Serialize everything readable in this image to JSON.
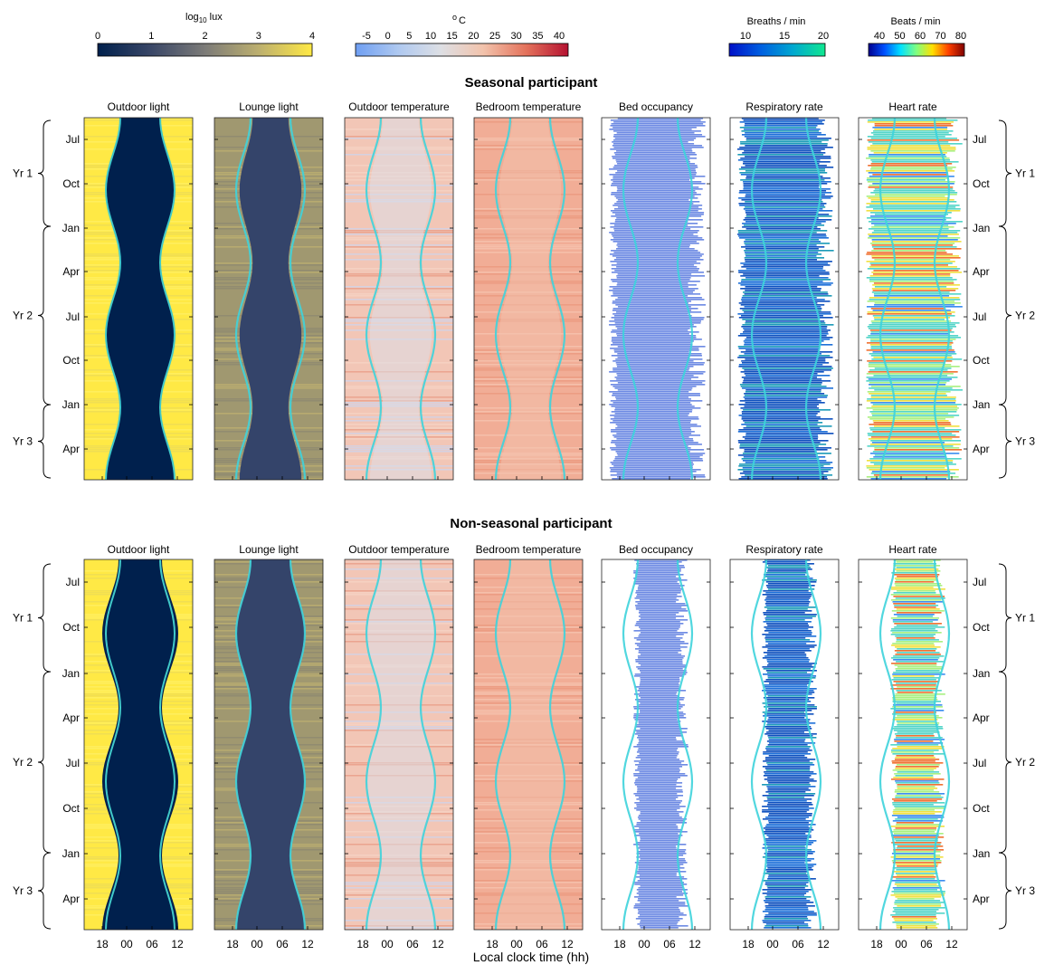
{
  "colorbars": [
    {
      "label": "log",
      "label_sub": "10",
      "label_tail": " lux",
      "ticks": [
        "0",
        "1",
        "2",
        "3",
        "4"
      ],
      "colors": [
        "#00204d",
        "#3a4767",
        "#7c7b78",
        "#bcaf6f",
        "#ffe945"
      ]
    },
    {
      "label": "o",
      "label_tail": "C",
      "ticks": [
        "-5",
        "0",
        "5",
        "10",
        "15",
        "20",
        "25",
        "30",
        "35",
        "40"
      ],
      "colors": [
        "#6f9ff2",
        "#aec8f0",
        "#dddfe4",
        "#f2c3ac",
        "#e4735c",
        "#b51231"
      ]
    },
    {
      "label": "Breaths / min",
      "ticks": [
        "10",
        "15",
        "20"
      ],
      "colors": [
        "#0010c8",
        "#0060e0",
        "#00a8d0",
        "#10e890"
      ]
    },
    {
      "label": "Beats / min",
      "ticks": [
        "40",
        "50",
        "60",
        "70",
        "80"
      ],
      "colors": [
        "#00008f",
        "#0050ff",
        "#00e0ff",
        "#80ff80",
        "#ffe000",
        "#ff4000",
        "#800000"
      ]
    }
  ],
  "sections": [
    {
      "title": "Seasonal participant",
      "years": [
        "Yr 1",
        "Yr 2",
        "Yr 3"
      ],
      "months": [
        "Jul",
        "Oct",
        "Jan",
        "Apr",
        "Jul",
        "Oct",
        "Jan",
        "Apr"
      ]
    },
    {
      "title": "Non-seasonal participant",
      "years": [
        "Yr 1",
        "Yr 2",
        "Yr 3"
      ],
      "months": [
        "Jul",
        "Oct",
        "Jan",
        "Apr",
        "Jul",
        "Oct",
        "Jan",
        "Apr"
      ]
    }
  ],
  "panels": [
    "Outdoor light",
    "Lounge light",
    "Outdoor temperature",
    "Bedroom temperature",
    "Bed occupancy",
    "Respiratory rate",
    "Heart rate"
  ],
  "xticks": [
    "18",
    "00",
    "06",
    "12"
  ],
  "xlabel": "Local clock time (hh)",
  "chart_data": {
    "type": "heatmap",
    "title": "",
    "xlabel": "Local clock time (hh)",
    "x_ticks": [
      "18",
      "00",
      "06",
      "12"
    ],
    "y_ticks": [
      "Jul",
      "Oct",
      "Jan",
      "Apr",
      "Jul",
      "Oct",
      "Jan",
      "Apr"
    ],
    "y_groups": [
      "Yr 1",
      "Yr 2",
      "Yr 3"
    ],
    "series": [
      {
        "section": "Seasonal participant",
        "panels": [
          "Outdoor light",
          "Lounge light",
          "Outdoor temperature",
          "Bedroom temperature",
          "Bed occupancy",
          "Respiratory rate",
          "Heart rate"
        ]
      },
      {
        "section": "Non-seasonal participant",
        "panels": [
          "Outdoor light",
          "Lounge light",
          "Outdoor temperature",
          "Bedroom temperature",
          "Bed occupancy",
          "Respiratory rate",
          "Heart rate"
        ]
      }
    ],
    "colorscales": [
      {
        "name": "log10 lux",
        "range": [
          0,
          4
        ]
      },
      {
        "name": "°C",
        "range": [
          -5,
          40
        ]
      },
      {
        "name": "Breaths / min",
        "range": [
          10,
          20
        ]
      },
      {
        "name": "Beats / min",
        "range": [
          40,
          80
        ]
      }
    ]
  }
}
